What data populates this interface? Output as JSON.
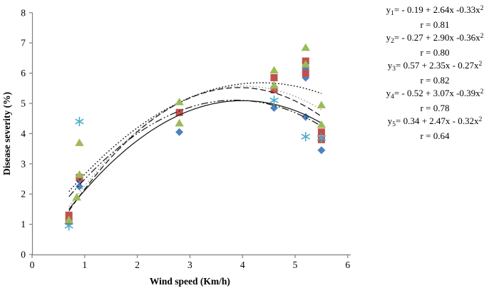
{
  "chart_data": {
    "type": "scatter",
    "title": "",
    "xlabel": "Wind speed (Km/h)",
    "ylabel": "Disease severity (%)",
    "xlim": [
      0,
      6
    ],
    "ylim": [
      0,
      8
    ],
    "xticks": [
      0,
      1,
      2,
      3,
      4,
      5,
      6
    ],
    "yticks": [
      0,
      1,
      2,
      3,
      4,
      5,
      6,
      7,
      8
    ],
    "grid": false,
    "legend_position": "none",
    "curve_x_range": [
      0.7,
      5.5
    ],
    "point_series": [
      {
        "name": "series-1-diamond",
        "marker": "diamond",
        "color": "#4F81BD",
        "points": [
          [
            0.9,
            2.45
          ],
          [
            0.9,
            2.25
          ],
          [
            2.8,
            4.05
          ],
          [
            4.6,
            4.85
          ],
          [
            5.2,
            6.15
          ],
          [
            5.2,
            5.85
          ],
          [
            5.2,
            4.55
          ],
          [
            5.5,
            3.45
          ]
        ]
      },
      {
        "name": "series-2-square",
        "marker": "square",
        "color": "#C0504D",
        "points": [
          [
            0.7,
            1.3
          ],
          [
            0.7,
            1.1
          ],
          [
            0.9,
            2.55
          ],
          [
            2.8,
            4.7
          ],
          [
            4.6,
            5.85
          ],
          [
            4.6,
            5.45
          ],
          [
            5.2,
            6.4
          ],
          [
            5.2,
            6.0
          ],
          [
            5.5,
            4.05
          ],
          [
            5.5,
            3.8
          ]
        ]
      },
      {
        "name": "series-3-triangle",
        "marker": "triangle",
        "color": "#9BBB59",
        "points": [
          [
            0.7,
            1.15
          ],
          [
            0.85,
            1.9
          ],
          [
            0.9,
            2.65
          ],
          [
            0.9,
            3.7
          ],
          [
            2.8,
            5.05
          ],
          [
            2.8,
            4.35
          ],
          [
            4.6,
            6.1
          ],
          [
            4.6,
            5.6
          ],
          [
            5.2,
            6.85
          ],
          [
            5.2,
            6.3
          ],
          [
            5.5,
            4.95
          ],
          [
            5.5,
            4.3
          ]
        ]
      },
      {
        "name": "series-4-asterisk",
        "marker": "asterisk",
        "color": "#4BACC6",
        "points": [
          [
            0.7,
            0.95
          ],
          [
            0.9,
            4.4
          ],
          [
            4.6,
            5.1
          ],
          [
            5.2,
            3.9
          ],
          [
            5.5,
            3.85
          ]
        ]
      }
    ],
    "trendlines": [
      {
        "name": "y1",
        "a": -0.19,
        "b": 2.64,
        "c": -0.33,
        "style": "solid",
        "color": "#1a1a1a"
      },
      {
        "name": "y2",
        "a": -0.27,
        "b": 2.9,
        "c": -0.36,
        "style": "dotted",
        "color": "#a8a8a8"
      },
      {
        "name": "y3",
        "a": 0.57,
        "b": 2.35,
        "c": -0.27,
        "style": "dotted",
        "color": "#1a1a1a"
      },
      {
        "name": "y4",
        "a": -0.52,
        "b": 3.07,
        "c": -0.39,
        "style": "dashed",
        "color": "#1a1a1a"
      },
      {
        "name": "y5",
        "a": 0.34,
        "b": 2.47,
        "c": -0.32,
        "style": "dashdotdot",
        "color": "#1a1a1a"
      }
    ]
  },
  "equations": [
    {
      "label": "y",
      "sub": "1",
      "expr": "= - 0.19 + 2.64x -0.33x",
      "sup": "2",
      "r": "r = 0.81"
    },
    {
      "label": "y",
      "sub": "2",
      "expr": "= - 0.27 + 2.90x -0.36x",
      "sup": "2",
      "r": "r = 0.80"
    },
    {
      "label": "y",
      "sub": "3",
      "expr": "=  0.57 + 2.35x - 0.27x",
      "sup": "2",
      "r": "r = 0.82"
    },
    {
      "label": "y",
      "sub": "4",
      "expr": "= - 0.52 + 3.07x -0.39x",
      "sup": "2",
      "r": "r = 0.78"
    },
    {
      "label": "y",
      "sub": "5",
      "expr": "=  0.34 + 2.47x - 0.32x",
      "sup": "2",
      "r": "r = 0.64"
    }
  ]
}
